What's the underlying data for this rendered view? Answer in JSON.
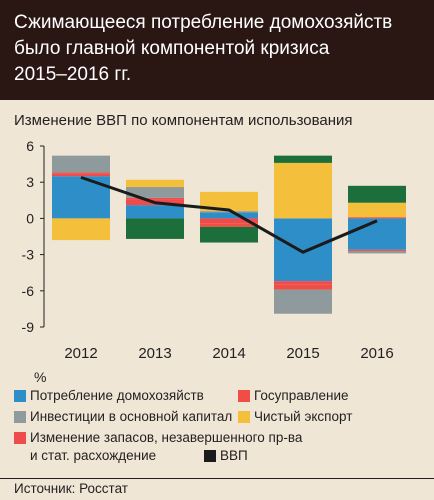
{
  "title_lines": [
    "Сжимающееся потребление домохозяйств",
    "было главной компонентой кризиса",
    "2015–2016 гг."
  ],
  "source": "Источник: Росстат",
  "colors": {
    "consumption": "#2e8fc8",
    "investment": "#8f9a9c",
    "inventories": "#ef4b4d",
    "government": "#f04e45",
    "net_export": "#f4c03c",
    "gdp": "#1b1b1b",
    "extra": "#1c6e3a"
  },
  "chart_data": {
    "type": "bar",
    "stacked": true,
    "title": "Изменение ВВП по компонентам использования",
    "ylabel": "%",
    "categories": [
      "2012",
      "2013",
      "2014",
      "2015",
      "2016"
    ],
    "ylim": [
      -9,
      6
    ],
    "yticks": [
      6,
      3,
      0,
      -3,
      -6,
      -9
    ],
    "ytick_labels": [
      "6",
      "3",
      "0",
      "-3",
      "-6",
      "-9"
    ],
    "series": [
      {
        "name": "Потребление домохозяйств",
        "color": "#2e8fc8",
        "values": [
          3.5,
          1.1,
          0.5,
          -5.2,
          -2.6
        ]
      },
      {
        "name": "Изменение запасов, незавершенного пр-ва и стат. расхождение",
        "color": "#ef4b4d",
        "values": [
          0.2,
          0.5,
          -0.4,
          -0.3,
          0.1
        ]
      },
      {
        "name": "Госуправление",
        "color": "#f04e45",
        "values": [
          0.1,
          0.1,
          -0.3,
          -0.4,
          -0.1
        ]
      },
      {
        "name": "Инвестиции в основной капитал",
        "color": "#8f9a9c",
        "values": [
          1.4,
          0.9,
          0.1,
          -2.0,
          -0.2
        ]
      },
      {
        "name": "Чистый экспорт",
        "color": "#f4c03c",
        "values": [
          -1.8,
          0.6,
          1.6,
          4.6,
          1.2
        ]
      },
      {
        "name": "",
        "color": "#1c6e3a",
        "values": [
          0,
          -1.7,
          -1.3,
          0.6,
          1.4
        ]
      }
    ],
    "line": {
      "name": "ВВП",
      "color": "#1b1b1b",
      "values": [
        3.4,
        1.3,
        0.7,
        -2.8,
        -0.2
      ]
    },
    "grid": false,
    "legend_position": "bottom"
  },
  "legend_items": [
    {
      "id": "consumption",
      "label": "Потребление домохозяйств",
      "color": "#2e8fc8",
      "type": "box"
    },
    {
      "id": "government",
      "label": "Госуправление",
      "color": "#f04e45",
      "type": "box"
    },
    {
      "id": "investment",
      "label": "Инвестиции в основной капитал",
      "color": "#8f9a9c",
      "type": "box"
    },
    {
      "id": "net_export",
      "label": "Чистый экспорт",
      "color": "#f4c03c",
      "type": "box"
    },
    {
      "id": "inventories",
      "label": "Изменение запасов, незавершенного пр-ва",
      "label2": "и стат. расхождение",
      "color": "#ef4b4d",
      "type": "box"
    },
    {
      "id": "gdp",
      "label": "ВВП",
      "color": "#1b1b1b",
      "type": "line"
    }
  ]
}
